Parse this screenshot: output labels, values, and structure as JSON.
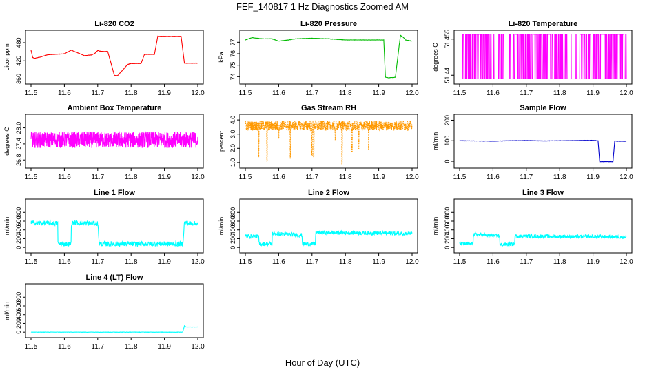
{
  "figure": {
    "title": "FEF_140817  1 Hz Diagnostics Zoomed AM",
    "xlabel": "Hour of Day (UTC)"
  },
  "chart_data": [
    {
      "type": "line",
      "title": "Li-820 CO2",
      "ylabel": "Licor ppm",
      "color": "#ff0000",
      "xlim": [
        11.5,
        12.0
      ],
      "ylim": [
        352,
        512
      ],
      "yticks": [
        360,
        420,
        480
      ],
      "x": [
        11.5,
        11.505,
        11.51,
        11.53,
        11.55,
        11.6,
        11.62,
        11.63,
        11.66,
        11.68,
        11.69,
        11.7,
        11.71,
        11.73,
        11.75,
        11.76,
        11.79,
        11.8,
        11.83,
        11.84,
        11.87,
        11.88,
        11.92,
        11.95,
        11.96,
        11.97,
        12.0
      ],
      "y": [
        455,
        431,
        428,
        433,
        440,
        443,
        455,
        451,
        437,
        439,
        443,
        454,
        451,
        451,
        371,
        371,
        408,
        411,
        411,
        441,
        441,
        501,
        501,
        501,
        412,
        412,
        412
      ]
    },
    {
      "type": "line",
      "title": "Li-820 Pressure",
      "ylabel": "kPa",
      "color": "#00bb00",
      "xlim": [
        11.5,
        12.0
      ],
      "ylim": [
        73.6,
        77.8
      ],
      "yticks": [
        74,
        75,
        76,
        77
      ],
      "x": [
        11.5,
        11.52,
        11.55,
        11.58,
        11.6,
        11.63,
        11.65,
        11.7,
        11.75,
        11.8,
        11.85,
        11.9,
        11.915,
        11.92,
        11.93,
        11.95,
        11.965,
        11.975,
        11.98,
        12.0
      ],
      "y": [
        77.2,
        77.4,
        77.3,
        77.3,
        77.1,
        77.2,
        77.3,
        77.35,
        77.3,
        77.2,
        77.2,
        77.2,
        77.2,
        73.95,
        73.9,
        73.95,
        77.6,
        77.4,
        77.2,
        77.1
      ]
    },
    {
      "type": "line",
      "title": "Li-820 Temperature",
      "ylabel": "degrees C",
      "color": "#ff00ff",
      "xlim": [
        11.5,
        12.0
      ],
      "ylim": [
        51.4375,
        51.4575
      ],
      "yticks": [
        51.44,
        51.455
      ],
      "low": 51.4385,
      "high": 51.457,
      "pattern": "switches between two quantized levels"
    },
    {
      "type": "line",
      "title": "Ambient Box Temperature",
      "ylabel": "degrees C",
      "color": "#ff00ff",
      "xlim": [
        11.5,
        12.0
      ],
      "ylim": [
        26.6,
        28.4
      ],
      "yticks": [
        26.8,
        27.4,
        28.0
      ],
      "mean": 27.55,
      "amplitude": 0.3,
      "pattern": "noisy around mean"
    },
    {
      "type": "line",
      "title": "Gas Stream RH",
      "ylabel": "percent",
      "color": "#ff9900",
      "xlim": [
        11.5,
        12.0
      ],
      "ylim": [
        0.8,
        4.2
      ],
      "yticks": [
        1.0,
        2.0,
        3.0,
        4.0
      ],
      "mean": 3.6,
      "amplitude": 0.35,
      "dips": [
        [
          11.54,
          1.4
        ],
        [
          11.565,
          1.1
        ],
        [
          11.6,
          2.7
        ],
        [
          11.635,
          1.3
        ],
        [
          11.7,
          1.5
        ],
        [
          11.705,
          1.4
        ],
        [
          11.77,
          2.6
        ],
        [
          11.79,
          0.9
        ],
        [
          11.82,
          1.8
        ],
        [
          11.84,
          2.0
        ],
        [
          11.87,
          1.9
        ]
      ]
    },
    {
      "type": "line",
      "title": "Sample Flow",
      "ylabel": "ml/min",
      "color": "#0000cc",
      "xlim": [
        11.5,
        12.0
      ],
      "ylim": [
        -20,
        215
      ],
      "yticks": [
        0,
        100,
        200
      ],
      "x": [
        11.5,
        11.6,
        11.65,
        11.7,
        11.75,
        11.8,
        11.9,
        11.915,
        11.92,
        11.96,
        11.965,
        11.97,
        12.0
      ],
      "y": [
        100,
        98,
        100,
        101,
        99,
        100,
        102,
        100,
        -2,
        -2,
        100,
        98,
        97
      ]
    },
    {
      "type": "line",
      "title": "Line 1 Flow",
      "ylabel": "ml/min",
      "color": "#00ffff",
      "xlim": [
        11.5,
        12.0
      ],
      "ylim": [
        -60,
        1040
      ],
      "yticks": [
        0,
        200,
        400,
        600,
        800
      ],
      "x": [
        11.5,
        11.58,
        11.581,
        11.62,
        11.621,
        11.7,
        11.705,
        11.955,
        11.96,
        12.0
      ],
      "y": [
        560,
        550,
        80,
        80,
        560,
        545,
        80,
        80,
        560,
        540
      ],
      "noise": 55
    },
    {
      "type": "line",
      "title": "Line 2 Flow",
      "ylabel": "ml/min",
      "color": "#00ffff",
      "xlim": [
        11.5,
        12.0
      ],
      "ylim": [
        -60,
        1040
      ],
      "yticks": [
        0,
        200,
        400,
        600,
        800
      ],
      "x": [
        11.5,
        11.54,
        11.541,
        11.58,
        11.581,
        11.67,
        11.671,
        11.71,
        11.711,
        12.0
      ],
      "y": [
        260,
        250,
        80,
        80,
        320,
        280,
        80,
        80,
        340,
        320
      ],
      "noise": 45
    },
    {
      "type": "line",
      "title": "Line 3 Flow",
      "ylabel": "ml/min",
      "color": "#00ffff",
      "xlim": [
        11.5,
        12.0
      ],
      "ylim": [
        -60,
        1040
      ],
      "yticks": [
        0,
        200,
        400,
        600,
        800
      ],
      "x": [
        11.5,
        11.54,
        11.541,
        11.62,
        11.621,
        11.665,
        11.666,
        12.0
      ],
      "y": [
        80,
        80,
        300,
        260,
        60,
        80,
        260,
        240
      ],
      "noise": 40
    },
    {
      "type": "line",
      "title": "Line 4 (LT) Flow",
      "ylabel": "ml/min",
      "color": "#00ffff",
      "xlim": [
        11.5,
        12.0
      ],
      "ylim": [
        -60,
        1040
      ],
      "yticks": [
        0,
        200,
        400,
        600,
        800
      ],
      "x": [
        11.5,
        11.955,
        11.96,
        11.965,
        12.0
      ],
      "y": [
        0,
        0,
        150,
        120,
        120
      ]
    }
  ],
  "xticks": [
    11.5,
    11.6,
    11.7,
    11.8,
    11.9,
    12.0
  ],
  "xtick_labels": [
    "11.5",
    "11.6",
    "11.7",
    "11.8",
    "11.9",
    "12.0"
  ]
}
